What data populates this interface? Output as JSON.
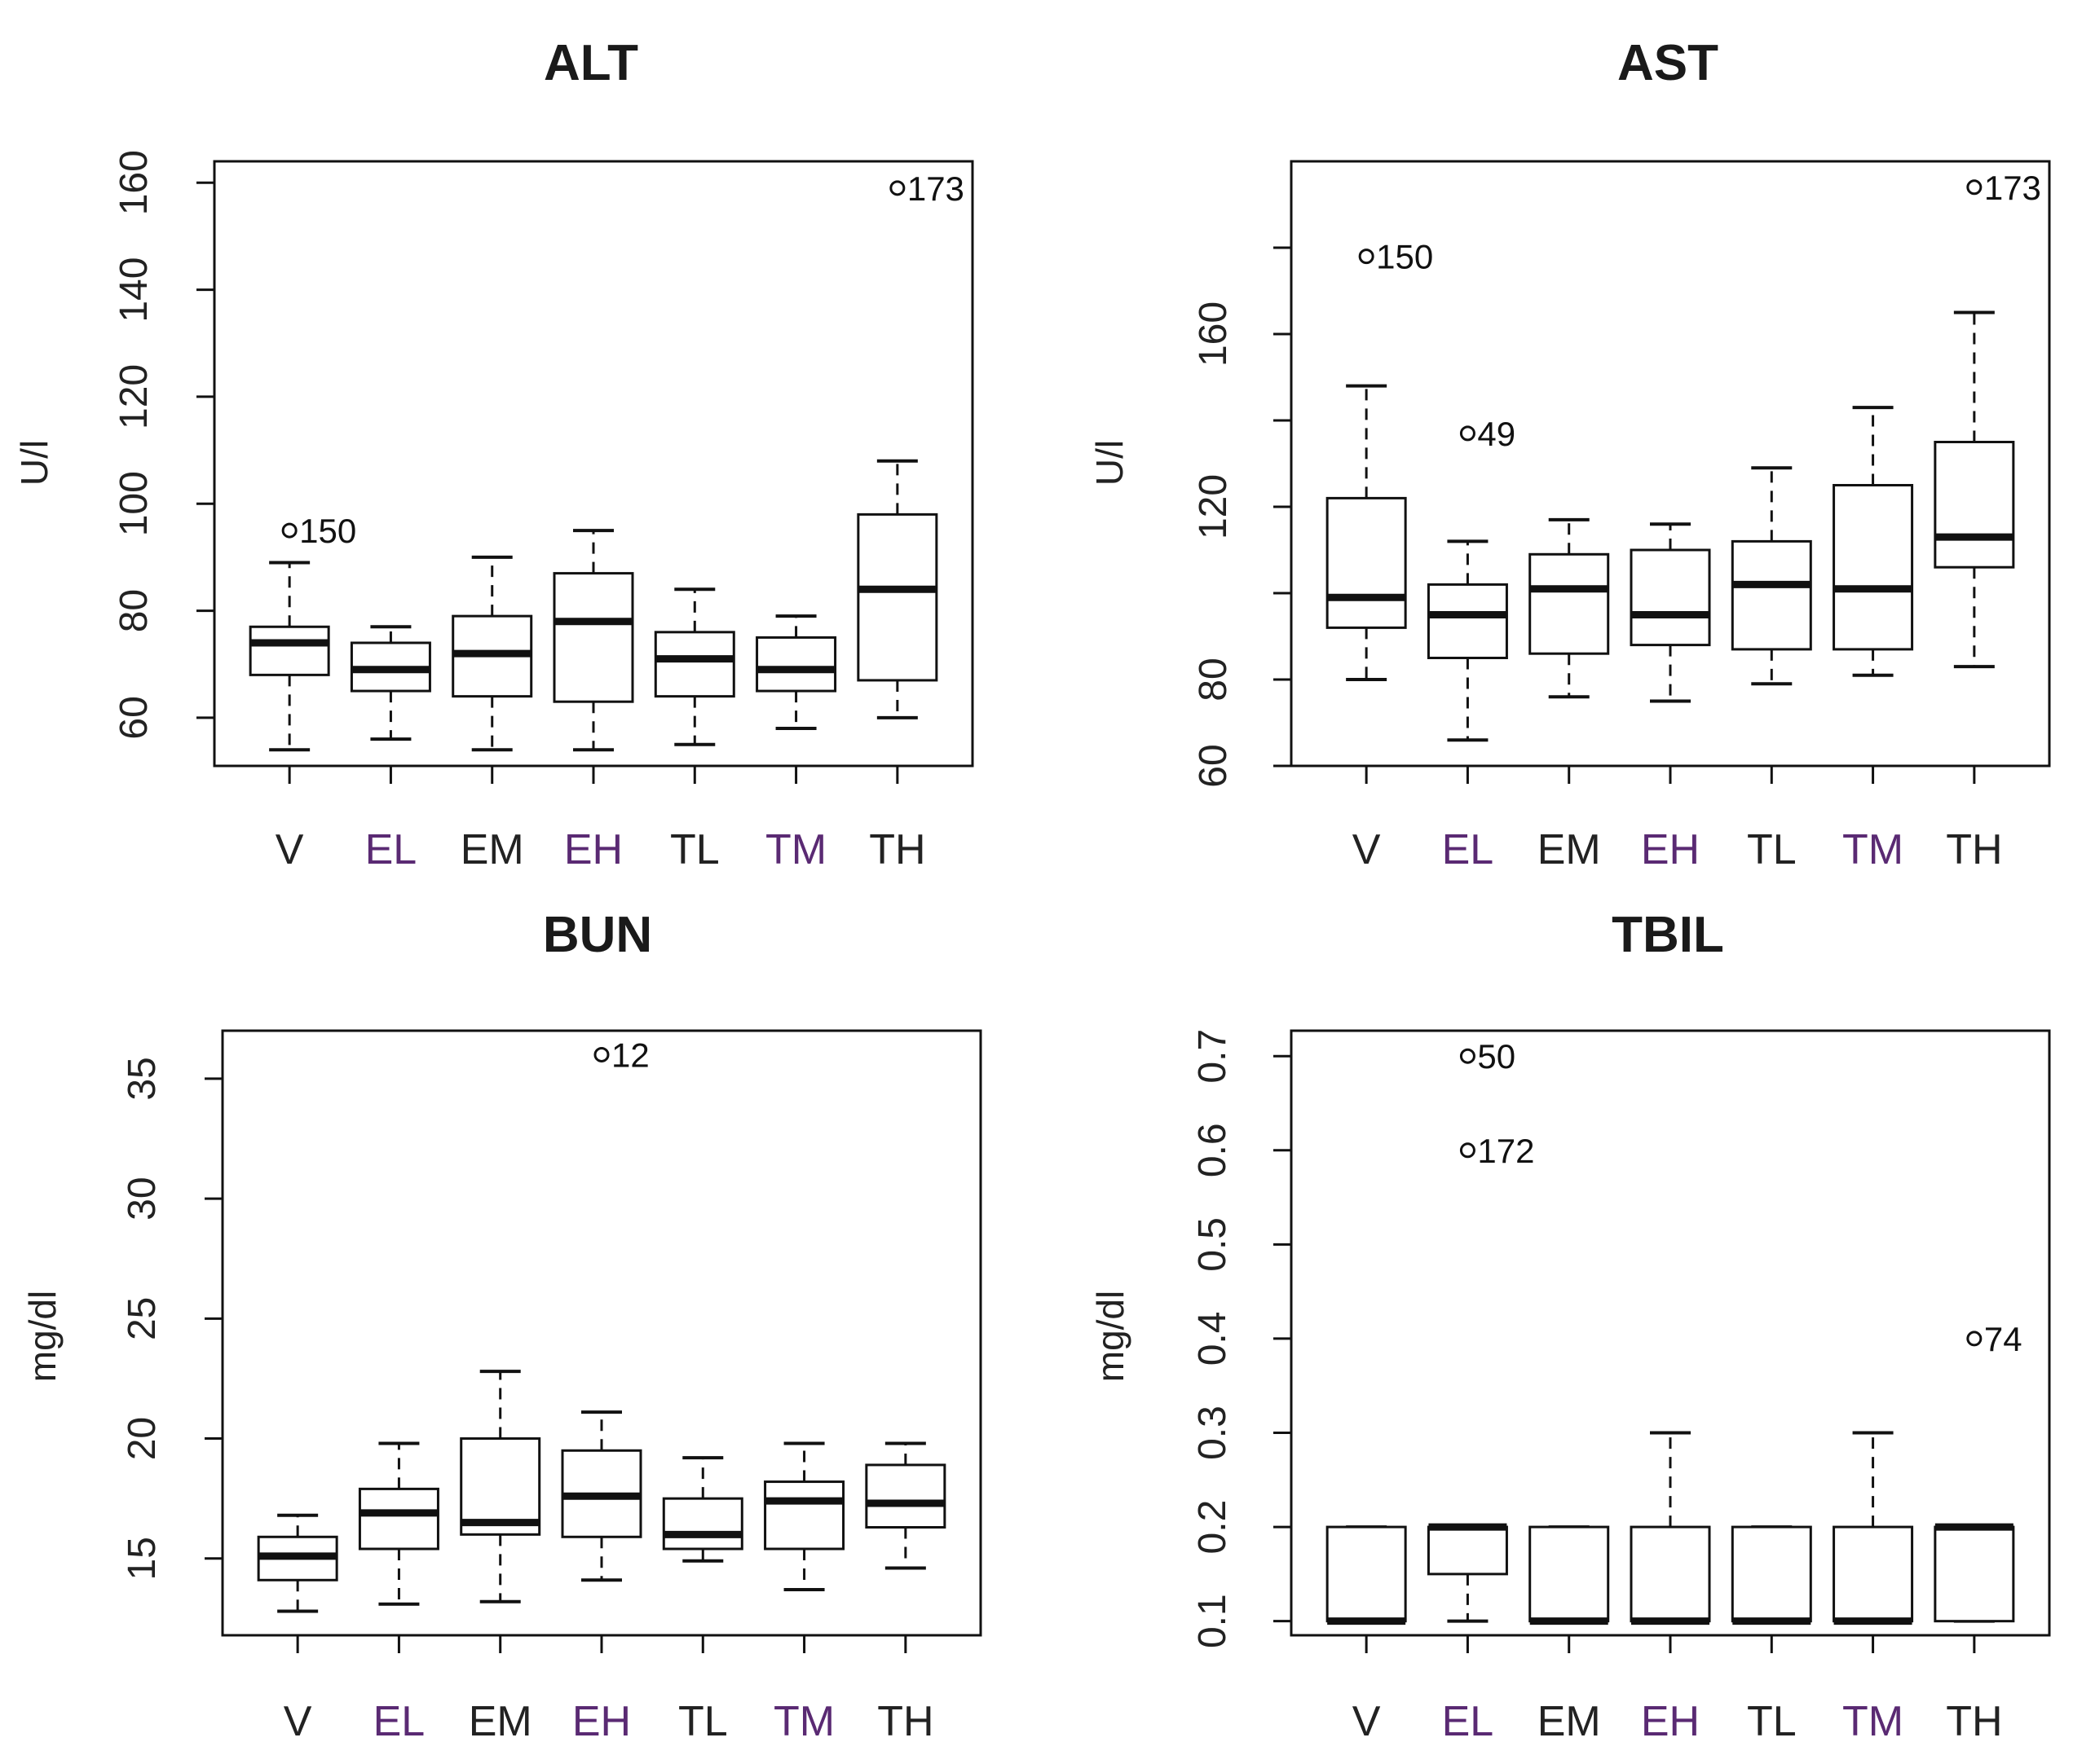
{
  "chart_data": [
    {
      "type": "boxplot",
      "title": "ALT",
      "ylabel": "U/l",
      "xlabel": "",
      "ylim": [
        51,
        164
      ],
      "yticks": [
        60,
        80,
        100,
        120,
        140,
        160
      ],
      "categories": [
        "V",
        "EL",
        "EM",
        "EH",
        "TL",
        "TM",
        "TH"
      ],
      "boxes": [
        {
          "min": 54,
          "q1": 68,
          "median": 74,
          "q3": 77,
          "max": 89
        },
        {
          "min": 56,
          "q1": 65,
          "median": 69,
          "q3": 74,
          "max": 77
        },
        {
          "min": 54,
          "q1": 64,
          "median": 72,
          "q3": 79,
          "max": 90
        },
        {
          "min": 54,
          "q1": 63,
          "median": 78,
          "q3": 87,
          "max": 95
        },
        {
          "min": 55,
          "q1": 64,
          "median": 71,
          "q3": 76,
          "max": 84
        },
        {
          "min": 58,
          "q1": 65,
          "median": 69,
          "q3": 75,
          "max": 79
        },
        {
          "min": 60,
          "q1": 67,
          "median": 84,
          "q3": 98,
          "max": 108
        }
      ],
      "outliers": [
        {
          "category": "V",
          "value": 95,
          "label": "150"
        },
        {
          "category": "TH",
          "value": 159,
          "label": "173"
        }
      ]
    },
    {
      "type": "boxplot",
      "title": "AST",
      "ylabel": "U/l",
      "xlabel": "",
      "ylim": [
        60,
        200
      ],
      "yticks": [
        60,
        80,
        120,
        160
      ],
      "minor_ticks": [
        100,
        140,
        180
      ],
      "categories": [
        "V",
        "EL",
        "EM",
        "EH",
        "TL",
        "TM",
        "TH"
      ],
      "boxes": [
        {
          "min": 80,
          "q1": 92,
          "median": 99,
          "q3": 122,
          "max": 148
        },
        {
          "min": 66,
          "q1": 85,
          "median": 95,
          "q3": 102,
          "max": 112
        },
        {
          "min": 76,
          "q1": 86,
          "median": 101,
          "q3": 109,
          "max": 117
        },
        {
          "min": 75,
          "q1": 88,
          "median": 95,
          "q3": 110,
          "max": 116
        },
        {
          "min": 79,
          "q1": 87,
          "median": 102,
          "q3": 112,
          "max": 129
        },
        {
          "min": 81,
          "q1": 87,
          "median": 101,
          "q3": 125,
          "max": 143
        },
        {
          "min": 83,
          "q1": 106,
          "median": 113,
          "q3": 135,
          "max": 165
        }
      ],
      "outliers": [
        {
          "category": "V",
          "value": 178,
          "label": "150"
        },
        {
          "category": "EL",
          "value": 137,
          "label": "49"
        },
        {
          "category": "TH",
          "value": 194,
          "label": "173"
        }
      ]
    },
    {
      "type": "boxplot",
      "title": "BUN",
      "ylabel": "mg/dl",
      "xlabel": "",
      "ylim": [
        11.8,
        37
      ],
      "yticks": [
        15,
        20,
        25,
        30,
        35
      ],
      "categories": [
        "V",
        "EL",
        "EM",
        "EH",
        "TL",
        "TM",
        "TH"
      ],
      "boxes": [
        {
          "min": 12.8,
          "q1": 14.1,
          "median": 15.1,
          "q3": 15.9,
          "max": 16.8
        },
        {
          "min": 13.1,
          "q1": 15.4,
          "median": 16.9,
          "q3": 17.9,
          "max": 19.8
        },
        {
          "min": 13.2,
          "q1": 16.0,
          "median": 16.5,
          "q3": 20.0,
          "max": 22.8
        },
        {
          "min": 14.1,
          "q1": 15.9,
          "median": 17.6,
          "q3": 19.5,
          "max": 21.1
        },
        {
          "min": 14.9,
          "q1": 15.4,
          "median": 16.0,
          "q3": 17.5,
          "max": 19.2
        },
        {
          "min": 13.7,
          "q1": 15.4,
          "median": 17.4,
          "q3": 18.2,
          "max": 19.8
        },
        {
          "min": 14.6,
          "q1": 16.3,
          "median": 17.3,
          "q3": 18.9,
          "max": 19.8
        }
      ],
      "outliers": [
        {
          "category": "EH",
          "value": 36,
          "label": "12"
        }
      ]
    },
    {
      "type": "boxplot",
      "title": "TBIL",
      "ylabel": "mg/dl",
      "xlabel": "",
      "ylim": [
        0.085,
        0.727
      ],
      "yticks": [
        0.1,
        0.2,
        0.3,
        0.4,
        0.5,
        0.6,
        0.7
      ],
      "categories": [
        "V",
        "EL",
        "EM",
        "EH",
        "TL",
        "TM",
        "TH"
      ],
      "boxes": [
        {
          "min": 0.1,
          "q1": 0.1,
          "median": 0.1,
          "q3": 0.2,
          "max": 0.2
        },
        {
          "min": 0.1,
          "q1": 0.15,
          "median": 0.2,
          "q3": 0.2,
          "max": 0.2
        },
        {
          "min": 0.1,
          "q1": 0.1,
          "median": 0.1,
          "q3": 0.2,
          "max": 0.2
        },
        {
          "min": 0.1,
          "q1": 0.1,
          "median": 0.1,
          "q3": 0.2,
          "max": 0.3
        },
        {
          "min": 0.1,
          "q1": 0.1,
          "median": 0.1,
          "q3": 0.2,
          "max": 0.2
        },
        {
          "min": 0.1,
          "q1": 0.1,
          "median": 0.1,
          "q3": 0.2,
          "max": 0.3
        },
        {
          "min": 0.1,
          "q1": 0.1,
          "median": 0.2,
          "q3": 0.2,
          "max": 0.2
        }
      ],
      "outliers": [
        {
          "category": "EL",
          "value": 0.7,
          "label": "50"
        },
        {
          "category": "EL",
          "value": 0.6,
          "label": "172"
        },
        {
          "category": "TH",
          "value": 0.4,
          "label": "74"
        }
      ]
    }
  ],
  "colors": {
    "ink": "#111111",
    "category_purple": "#5a2a73"
  }
}
